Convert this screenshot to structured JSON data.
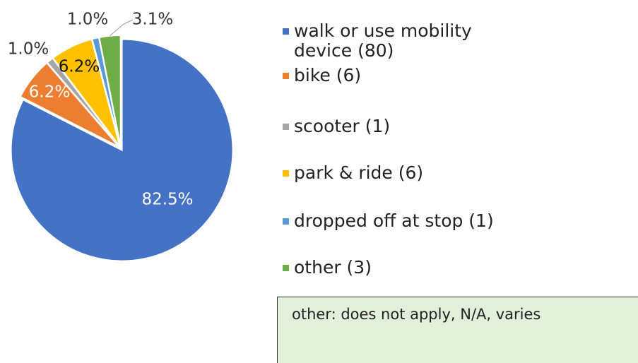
{
  "chart_data": {
    "type": "pie",
    "categories": [
      "walk or use mobility device (80)",
      "bike (6)",
      "scooter (1)",
      "park & ride (6)",
      "dropped off at stop (1)",
      "other (3)"
    ],
    "values": [
      82.5,
      6.2,
      1.0,
      6.2,
      1.0,
      3.1
    ],
    "value_labels": [
      "82.5%",
      "6.2%",
      "1.0%",
      "6.2%",
      "1.0%",
      "3.1%"
    ],
    "colors": [
      "#4472c4",
      "#ed7d31",
      "#a5a5a5",
      "#ffc000",
      "#5b9bd5",
      "#70ad47"
    ],
    "note": "other: does not apply, N/A, varies"
  }
}
